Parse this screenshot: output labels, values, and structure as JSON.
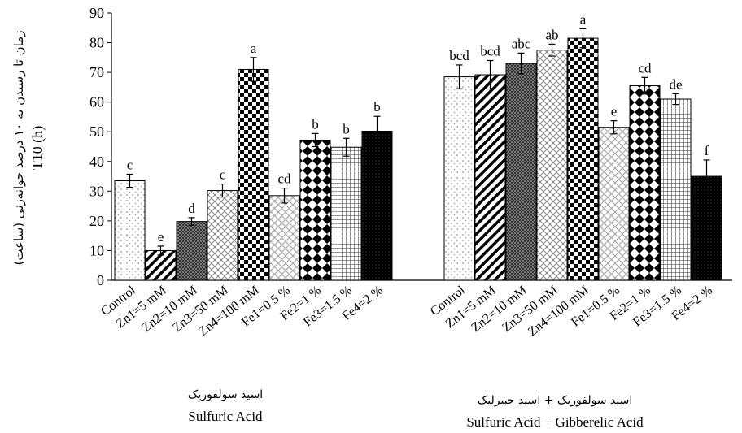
{
  "chart_data": {
    "type": "bar",
    "ylabel": "T10 (h)",
    "ylabel_fa": "زمان تا رسیدن به ۱۰ درصد جوانه‌زنی (ساعت)",
    "ylim": [
      0,
      90
    ],
    "yticks": [
      0,
      10,
      20,
      30,
      40,
      50,
      60,
      70,
      80,
      90
    ],
    "grid": false,
    "groups": [
      {
        "title_fa": "اسید سولفوریک",
        "title_en": "Sulfuric Acid",
        "categories": [
          "Control",
          "Zn1=5 mM",
          "Zn2=10 mM",
          "Zn3=50 mM",
          "Zn4=100 mM",
          "Fe1=0.5 %",
          "Fe2=1 %",
          "Fe3=1.5 %",
          "Fe4=2 %"
        ],
        "values": [
          33.5,
          10,
          19.8,
          30.2,
          71,
          28.5,
          47.2,
          44.8,
          50.2
        ],
        "errors": [
          2.2,
          1.5,
          1.3,
          2.2,
          4,
          2.5,
          2.2,
          3,
          5
        ],
        "letters": [
          "c",
          "e",
          "d",
          "c",
          "a",
          "cd",
          "b",
          "b",
          "b"
        ]
      },
      {
        "title_fa": "اسید سولفوریک + اسید جیبرلیک",
        "title_en": "Sulfuric Acid + Gibberelic Acid",
        "categories": [
          "Control",
          "Zn1=5 mM",
          "Zn2=10 mM",
          "Zn3=50 mM",
          "Zn4=100 mM",
          "Fe1=0.5 %",
          "Fe2=1 %",
          "Fe3=1.5 %",
          "Fe4=2 %"
        ],
        "values": [
          68.5,
          69.2,
          73,
          77.5,
          81.5,
          51.5,
          65.5,
          61,
          35
        ],
        "errors": [
          4,
          4.8,
          3.5,
          2,
          3.2,
          2.2,
          2.8,
          1.8,
          5.5
        ],
        "letters": [
          "bcd",
          "bcd",
          "abc",
          "ab",
          "a",
          "e",
          "cd",
          "de",
          "f"
        ]
      }
    ],
    "patterns": [
      "dots",
      "diag-right",
      "dense-checker",
      "diag-cross",
      "checker",
      "diag-cross-light",
      "diamond",
      "grid",
      "solid-dots"
    ]
  }
}
